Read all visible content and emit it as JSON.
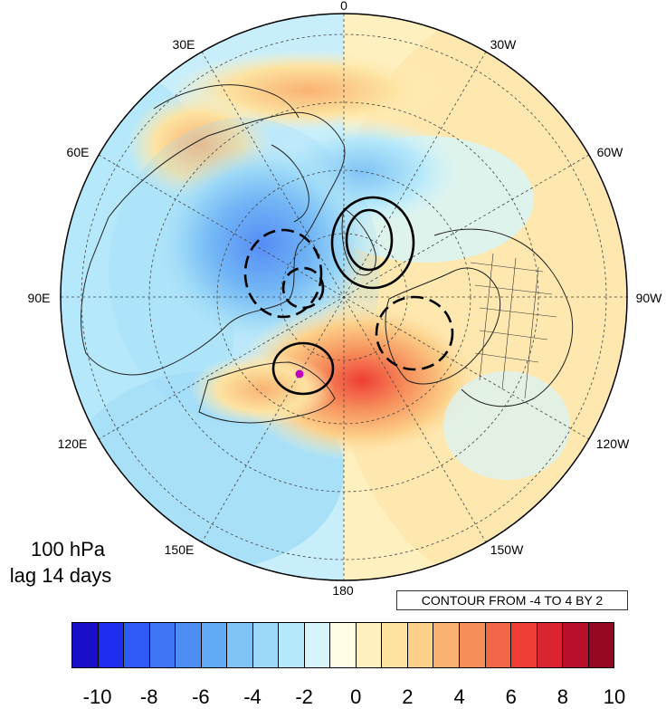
{
  "map": {
    "projection": "north-polar-stereographic",
    "longitude_labels": [
      "0",
      "30W",
      "60W",
      "90W",
      "120W",
      "150W",
      "180",
      "150E",
      "120E",
      "90E",
      "60E",
      "30E"
    ],
    "contour_note": "CONTOUR FROM -4 TO 4 BY 2",
    "level": "100 hPa",
    "lag": "lag 14 days",
    "marker_color": "#c000c0"
  },
  "colorbar": {
    "ticks": [
      "-10",
      "-8",
      "-6",
      "-4",
      "-2",
      "0",
      "2",
      "4",
      "6",
      "8",
      "10"
    ],
    "colors": [
      "#1a0fc8",
      "#1e2ef0",
      "#2e5af5",
      "#3f74f5",
      "#4d8ef5",
      "#63aaf5",
      "#80c3f5",
      "#9cd8f7",
      "#b5e8fa",
      "#d6f5fb",
      "#fffce5",
      "#fff0c0",
      "#fde2a0",
      "#fcd08a",
      "#f9b272",
      "#f68e5a",
      "#f26546",
      "#ee3e36",
      "#da2430",
      "#b8102c",
      "#960722"
    ]
  }
}
